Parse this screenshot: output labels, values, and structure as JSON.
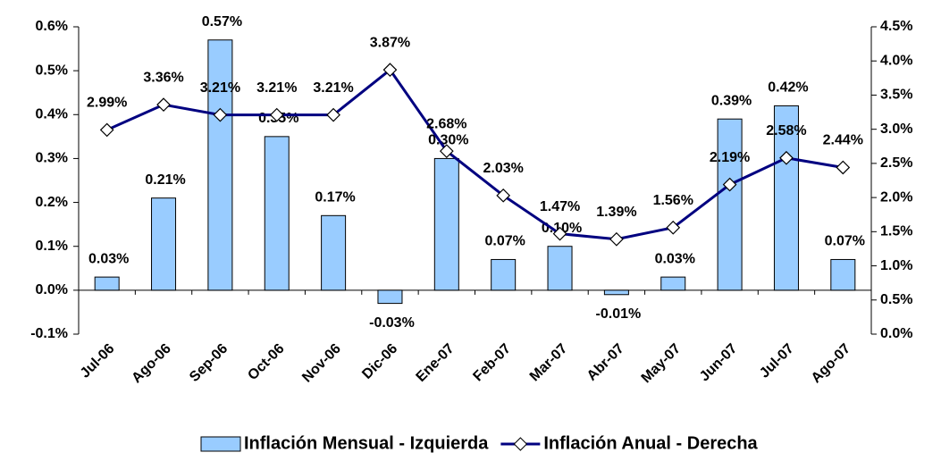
{
  "chart_data": {
    "type": "bar-line",
    "categories": [
      "Jul-06",
      "Ago-06",
      "Sep-06",
      "Oct-06",
      "Nov-06",
      "Dic-06",
      "Ene-07",
      "Feb-07",
      "Mar-07",
      "Abr-07",
      "May-07",
      "Jun-07",
      "Jul-07",
      "Ago-07"
    ],
    "series": [
      {
        "name": "Inflación Mensual - Izquierda",
        "type": "bar",
        "color": "#99ccff",
        "axis": "y",
        "values": [
          0.03,
          0.21,
          0.57,
          0.35,
          0.17,
          -0.03,
          0.3,
          0.07,
          0.1,
          -0.01,
          0.03,
          0.39,
          0.42,
          0.07
        ],
        "value_labels": [
          "0.03%",
          "0.21%",
          "0.57%",
          "0.35%",
          "0.17%",
          "-0.03%",
          "0.30%",
          "0.07%",
          "0.10%",
          "-0.01%",
          "0.03%",
          "0.39%",
          "0.42%",
          "0.07%"
        ]
      },
      {
        "name": "Inflación Anual - Derecha",
        "type": "line",
        "color": "#000080",
        "axis": "y2",
        "values": [
          2.99,
          3.36,
          3.21,
          3.21,
          3.21,
          3.87,
          2.68,
          2.03,
          1.47,
          1.39,
          1.56,
          2.19,
          2.58,
          2.44
        ],
        "value_labels": [
          "2.99%",
          "3.36%",
          "3.21%",
          "3.21%",
          "3.21%",
          "3.87%",
          "2.68%",
          "2.03%",
          "1.47%",
          "1.39%",
          "1.56%",
          "2.19%",
          "2.58%",
          "2.44%"
        ]
      }
    ],
    "ylim": [
      -0.1,
      0.6
    ],
    "yticks": [
      {
        "value": -0.1,
        "label": "-0.1%"
      },
      {
        "value": 0.0,
        "label": "0.0%"
      },
      {
        "value": 0.1,
        "label": "0.1%"
      },
      {
        "value": 0.2,
        "label": "0.2%"
      },
      {
        "value": 0.3,
        "label": "0.3%"
      },
      {
        "value": 0.4,
        "label": "0.4%"
      },
      {
        "value": 0.5,
        "label": "0.5%"
      },
      {
        "value": 0.6,
        "label": "0.6%"
      }
    ],
    "y2lim": [
      0.0,
      4.5
    ],
    "y2ticks": [
      {
        "value": 0.0,
        "label": "0.0%"
      },
      {
        "value": 0.5,
        "label": "0.5%"
      },
      {
        "value": 1.0,
        "label": "1.0%"
      },
      {
        "value": 1.5,
        "label": "1.5%"
      },
      {
        "value": 2.0,
        "label": "2.0%"
      },
      {
        "value": 2.5,
        "label": "2.5%"
      },
      {
        "value": 3.0,
        "label": "3.0%"
      },
      {
        "value": 3.5,
        "label": "3.5%"
      },
      {
        "value": 4.0,
        "label": "4.0%"
      },
      {
        "value": 4.5,
        "label": "4.5%"
      }
    ],
    "legend": "bottom",
    "grid": false
  }
}
